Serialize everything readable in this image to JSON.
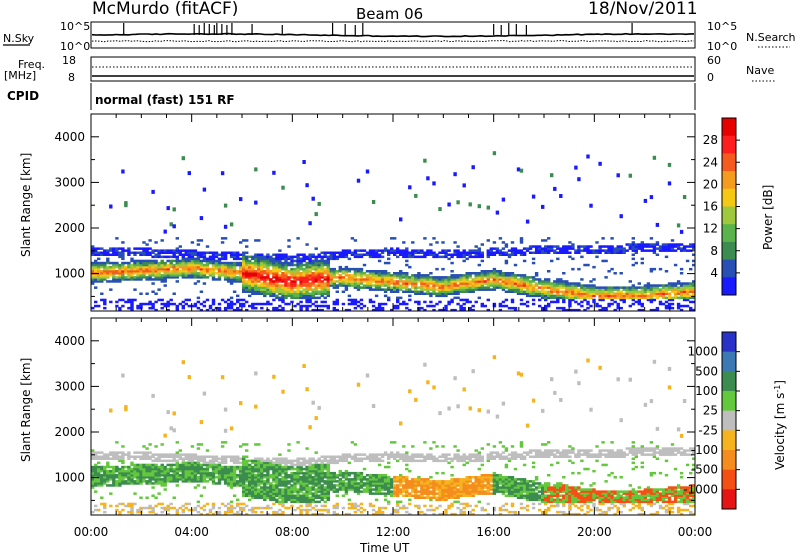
{
  "header": {
    "station": "McMurdo (fitACF)",
    "beam": "Beam 06",
    "date": "18/Nov/2011"
  },
  "noise_panel": {
    "left_label": "N.Sky",
    "right_label": "N.Search",
    "left_ticks": [
      "10^5",
      "10^0"
    ],
    "right_ticks": [
      "10^5",
      "10^0"
    ]
  },
  "freq_panel": {
    "left_label_1": "Freq.",
    "left_label_2": "[MHz]",
    "left_ticks": [
      "18",
      "8"
    ],
    "right_label": "Nave",
    "right_ticks": [
      "60",
      "0"
    ]
  },
  "cpid_panel": {
    "label": "CPID",
    "text": "normal (fast) 151 RF"
  },
  "power_panel": {
    "ylabel": "Slant Range [km]",
    "yticks": [
      "4000",
      "3000",
      "2000",
      "1000"
    ],
    "colorbar_label": "Power [dB]",
    "colorbar_ticks": [
      "28",
      "24",
      "20",
      "16",
      "12",
      "8",
      "4"
    ],
    "colors": [
      "#1a1aff",
      "#2850b4",
      "#3c8c50",
      "#5ab44b",
      "#a0c83c",
      "#f5c814",
      "#f59b1e",
      "#f55a1e",
      "#ff1e1e",
      "#e60000"
    ]
  },
  "velocity_panel": {
    "ylabel": "Slant Range [km]",
    "yticks": [
      "4000",
      "3000",
      "2000",
      "1000"
    ],
    "colorbar_label": "Velocity [m s^-1]",
    "colorbar_ticks": [
      "1000",
      "500",
      "100",
      "25",
      "-25",
      "-100",
      "-500",
      "-1000"
    ],
    "colors": [
      "#2832c8",
      "#3c78b4",
      "#3c8c50",
      "#64c83c",
      "#bebebe",
      "#f5b41e",
      "#f58c1e",
      "#f55014",
      "#e61414"
    ]
  },
  "xaxis": {
    "label": "Time UT",
    "ticks": [
      "00:00",
      "04:00",
      "08:00",
      "12:00",
      "16:00",
      "20:00",
      "00:00"
    ]
  },
  "chart_data": {
    "type": "heatmap",
    "title": "McMurdo (fitACF) Beam 06 18/Nov/2011",
    "xlabel": "Time UT",
    "ylabel": "Slant Range [km]",
    "xlim": [
      "00:00",
      "24:00"
    ],
    "ylim": [
      180,
      4500
    ],
    "colorbar_power_range_db": [
      0,
      32
    ],
    "colorbar_velocity_range_ms": [
      -1000,
      1000
    ],
    "power_band_centers_km": {
      "times_h": [
        0,
        2,
        4,
        6,
        7,
        8,
        9,
        10,
        12,
        14,
        16,
        18,
        20,
        22,
        24
      ],
      "inner_band_km": [
        1000,
        1050,
        1100,
        1000,
        900,
        800,
        850,
        900,
        800,
        700,
        850,
        650,
        500,
        500,
        600
      ],
      "outer_band_km": [
        1450,
        1450,
        1400,
        1350,
        1350,
        1300,
        1350,
        1400,
        1450,
        1400,
        1450,
        1500,
        1500,
        1550,
        1550
      ]
    },
    "peak_power_db": 30,
    "peak_power_interval": [
      "06:00",
      "09:00"
    ]
  }
}
